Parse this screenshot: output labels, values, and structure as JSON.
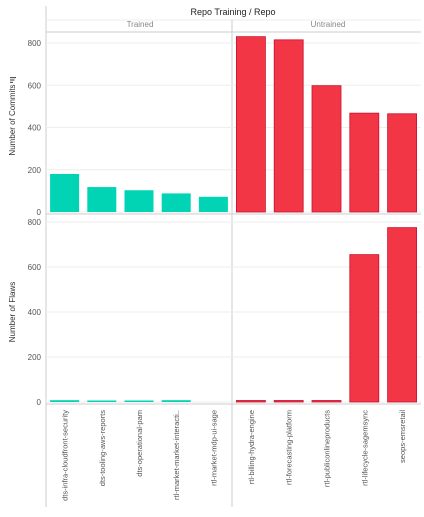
{
  "header": {
    "title": "Repo Training / Repo",
    "groups": [
      "Trained",
      "Untrained"
    ]
  },
  "colors": {
    "trained": "#00d4b4",
    "untrained": "#f23645",
    "untrained_stroke": "#c8102e",
    "grid": "#eeeeee",
    "axis": "#cccccc",
    "text": "#555555"
  },
  "chart_data": {
    "type": "bar",
    "title": "Repo Training / Repo",
    "categories": [
      "dts-infra-cloudfront-security",
      "dts-tooling-aws-reports",
      "dts-operational-pam",
      "rtl-market-market-interacti..",
      "rtl-market-mdp-ui-sage",
      "rtl-billing-hydra-engine",
      "rtl-forecasting-platform",
      "rtl-publiconlineproducts",
      "rtl-lifecycle-sagemsync",
      "seops-emsretail"
    ],
    "groups": [
      {
        "name": "Trained",
        "categories": [
          0,
          1,
          2,
          3,
          4
        ]
      },
      {
        "name": "Untrained",
        "categories": [
          5,
          6,
          7,
          8,
          9
        ]
      }
    ],
    "series": [
      {
        "ylabel": "Number of Commits",
        "ylim": [
          0,
          860
        ],
        "ticks": [
          0,
          200,
          400,
          600,
          800
        ],
        "values": [
          180,
          118,
          103,
          88,
          72,
          830,
          815,
          598,
          468,
          465
        ]
      },
      {
        "ylabel": "Number of Flaws",
        "ylim": [
          0,
          800
        ],
        "ticks": [
          0,
          200,
          400,
          600,
          800
        ],
        "values": [
          8,
          3,
          3,
          8,
          0,
          3,
          4,
          6,
          655,
          775
        ]
      }
    ],
    "grid": true,
    "legend": "none"
  }
}
